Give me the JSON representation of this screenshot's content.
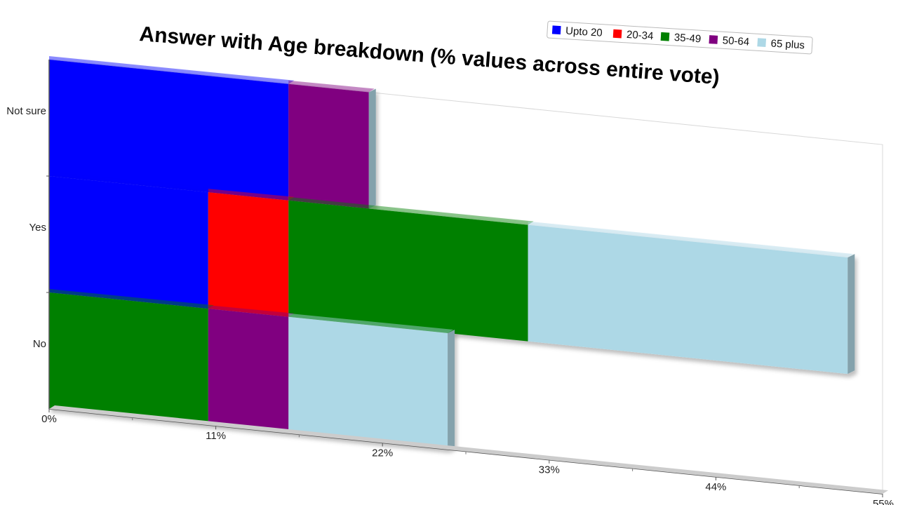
{
  "chart_data": {
    "type": "bar",
    "orientation": "horizontal",
    "stacked": true,
    "title": "Answer with Age breakdown (% values across entire vote)",
    "categories": [
      "Not sure",
      "Yes",
      "No"
    ],
    "x_ticks": [
      "0%",
      "11%",
      "22%",
      "33%",
      "44%",
      "55%"
    ],
    "xlim": [
      0,
      55
    ],
    "legend_position": "top-right",
    "series": [
      {
        "name": "Upto 20",
        "color": "#0000ff",
        "values": [
          15.8,
          10.5,
          0
        ]
      },
      {
        "name": "20-34",
        "color": "#ff0000",
        "values": [
          0,
          5.3,
          0
        ]
      },
      {
        "name": "35-49",
        "color": "#008000",
        "values": [
          0,
          15.8,
          10.5
        ]
      },
      {
        "name": "50-64",
        "color": "#800080",
        "values": [
          5.3,
          0,
          5.3
        ]
      },
      {
        "name": "65 plus",
        "color": "#add8e6",
        "values": [
          0,
          21.1,
          10.5
        ]
      }
    ]
  }
}
